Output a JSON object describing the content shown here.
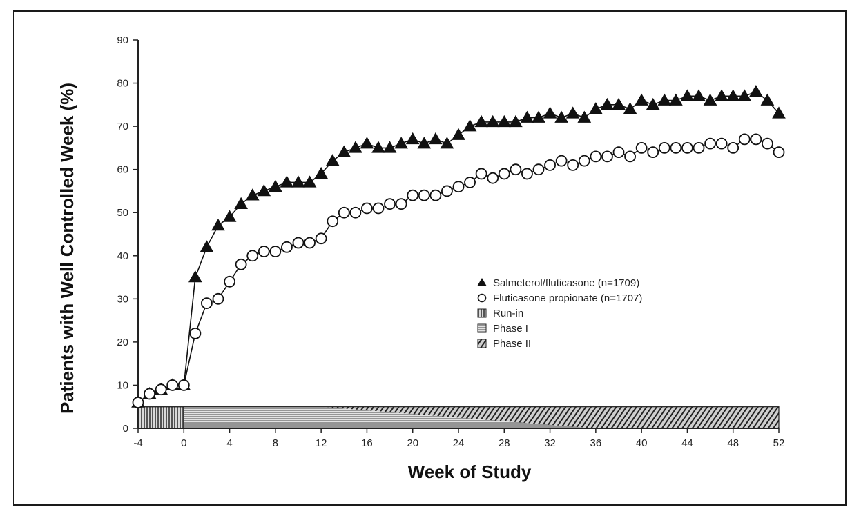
{
  "chart_data": {
    "type": "line",
    "title": "",
    "xlabel": "Week of Study",
    "ylabel": "Patients with Well Controlled Week (%)",
    "xlim": [
      -4,
      52
    ],
    "ylim": [
      0,
      90
    ],
    "xticks": [
      -4,
      0,
      4,
      8,
      12,
      16,
      20,
      24,
      28,
      32,
      36,
      40,
      44,
      48,
      52
    ],
    "yticks": [
      0,
      10,
      20,
      30,
      40,
      50,
      60,
      70,
      80,
      90
    ],
    "grid": false,
    "legend_position": "right",
    "series": [
      {
        "name": "Salmeterol/fluticasone (n=1709)",
        "marker": "triangle",
        "color": "#111111",
        "points": [
          [
            -4,
            6
          ],
          [
            -3,
            8
          ],
          [
            -2,
            9
          ],
          [
            -1,
            10
          ],
          [
            0,
            10
          ],
          [
            1,
            35
          ],
          [
            2,
            42
          ],
          [
            3,
            47
          ],
          [
            4,
            49
          ],
          [
            5,
            52
          ],
          [
            6,
            54
          ],
          [
            7,
            55
          ],
          [
            8,
            56
          ],
          [
            9,
            57
          ],
          [
            10,
            57
          ],
          [
            11,
            57
          ],
          [
            12,
            59
          ],
          [
            13,
            62
          ],
          [
            14,
            64
          ],
          [
            15,
            65
          ],
          [
            16,
            66
          ],
          [
            17,
            65
          ],
          [
            18,
            65
          ],
          [
            19,
            66
          ],
          [
            20,
            67
          ],
          [
            21,
            66
          ],
          [
            22,
            67
          ],
          [
            23,
            66
          ],
          [
            24,
            68
          ],
          [
            25,
            70
          ],
          [
            26,
            71
          ],
          [
            27,
            71
          ],
          [
            28,
            71
          ],
          [
            29,
            71
          ],
          [
            30,
            72
          ],
          [
            31,
            72
          ],
          [
            32,
            73
          ],
          [
            33,
            72
          ],
          [
            34,
            73
          ],
          [
            35,
            72
          ],
          [
            36,
            74
          ],
          [
            37,
            75
          ],
          [
            38,
            75
          ],
          [
            39,
            74
          ],
          [
            40,
            76
          ],
          [
            41,
            75
          ],
          [
            42,
            76
          ],
          [
            43,
            76
          ],
          [
            44,
            77
          ],
          [
            45,
            77
          ],
          [
            46,
            76
          ],
          [
            47,
            77
          ],
          [
            48,
            77
          ],
          [
            49,
            77
          ],
          [
            50,
            78
          ],
          [
            51,
            76
          ],
          [
            52,
            73
          ]
        ]
      },
      {
        "name": "Fluticasone propionate (n=1707)",
        "marker": "circle",
        "color": "#111111",
        "points": [
          [
            -4,
            6
          ],
          [
            -3,
            8
          ],
          [
            -2,
            9
          ],
          [
            -1,
            10
          ],
          [
            0,
            10
          ],
          [
            1,
            22
          ],
          [
            2,
            29
          ],
          [
            3,
            30
          ],
          [
            4,
            34
          ],
          [
            5,
            38
          ],
          [
            6,
            40
          ],
          [
            7,
            41
          ],
          [
            8,
            41
          ],
          [
            9,
            42
          ],
          [
            10,
            43
          ],
          [
            11,
            43
          ],
          [
            12,
            44
          ],
          [
            13,
            48
          ],
          [
            14,
            50
          ],
          [
            15,
            50
          ],
          [
            16,
            51
          ],
          [
            17,
            51
          ],
          [
            18,
            52
          ],
          [
            19,
            52
          ],
          [
            20,
            54
          ],
          [
            21,
            54
          ],
          [
            22,
            54
          ],
          [
            23,
            55
          ],
          [
            24,
            56
          ],
          [
            25,
            57
          ],
          [
            26,
            59
          ],
          [
            27,
            58
          ],
          [
            28,
            59
          ],
          [
            29,
            60
          ],
          [
            30,
            59
          ],
          [
            31,
            60
          ],
          [
            32,
            61
          ],
          [
            33,
            62
          ],
          [
            34,
            61
          ],
          [
            35,
            62
          ],
          [
            36,
            63
          ],
          [
            37,
            63
          ],
          [
            38,
            64
          ],
          [
            39,
            63
          ],
          [
            40,
            65
          ],
          [
            41,
            64
          ],
          [
            42,
            65
          ],
          [
            43,
            65
          ],
          [
            44,
            65
          ],
          [
            45,
            65
          ],
          [
            46,
            66
          ],
          [
            47,
            66
          ],
          [
            48,
            65
          ],
          [
            49,
            67
          ],
          [
            50,
            67
          ],
          [
            51,
            66
          ],
          [
            52,
            64
          ]
        ]
      }
    ],
    "phase_bar": {
      "y_range": [
        0,
        5
      ],
      "segments": [
        {
          "name": "Run-in",
          "x_range": [
            -4,
            0
          ],
          "pattern": "vertical"
        },
        {
          "name": "Phase I",
          "x_range": [
            0,
            52
          ],
          "pattern": "horizontal"
        },
        {
          "name": "Phase II",
          "x_range": [
            12,
            52
          ],
          "pattern": "diagonal"
        }
      ]
    },
    "legend": [
      {
        "label": "Salmeterol/fluticasone (n=1709)",
        "symbol": "triangle"
      },
      {
        "label": "Fluticasone propionate (n=1707)",
        "symbol": "circle"
      },
      {
        "label": "Run-in",
        "symbol": "square"
      },
      {
        "label": "Phase I",
        "symbol": "square"
      },
      {
        "label": "Phase II",
        "symbol": "square"
      }
    ]
  }
}
